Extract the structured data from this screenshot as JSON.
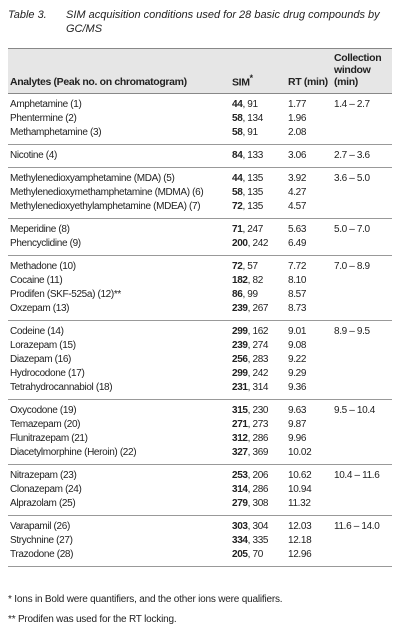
{
  "caption": {
    "label": "Table 3.",
    "text": "SIM acquisition conditions used for 28 basic drug compounds by GC/MS"
  },
  "header": {
    "analytes": "Analytes (Peak no. on chromatogram)",
    "sim": "SIM",
    "sim_note": "*",
    "rt": "RT (min)",
    "window": "Collection window (min)"
  },
  "groups": [
    {
      "window": "1.4 – 2.7",
      "rows": [
        {
          "name": "Amphetamine (1)",
          "quant": "44",
          "qual": ", 91",
          "rt": "1.77"
        },
        {
          "name": "Phentermine (2)",
          "quant": "58",
          "qual": ", 134",
          "rt": "1.96"
        },
        {
          "name": "Methamphetamine (3)",
          "quant": "58",
          "qual": ", 91",
          "rt": "2.08"
        }
      ]
    },
    {
      "window": "2.7 – 3.6",
      "rows": [
        {
          "name": "Nicotine (4)",
          "quant": "84",
          "qual": ", 133",
          "rt": "3.06"
        }
      ]
    },
    {
      "window": "3.6 – 5.0",
      "rows": [
        {
          "name": "Methylenedioxyamphetamine (MDA) (5)",
          "quant": "44",
          "qual": ", 135",
          "rt": "3.92"
        },
        {
          "name": "Methylenedioxymethamphetamine (MDMA) (6)",
          "quant": "58",
          "qual": ", 135",
          "rt": "4.27"
        },
        {
          "name": "Methylenedioxyethylamphetamine (MDEA) (7)",
          "quant": "72",
          "qual": ", 135",
          "rt": "4.57"
        }
      ]
    },
    {
      "window": "5.0 – 7.0",
      "rows": [
        {
          "name": "Meperidine (8)",
          "quant": "71",
          "qual": ", 247",
          "rt": "5.63"
        },
        {
          "name": "Phencyclidine (9)",
          "quant": "200",
          "qual": ", 242",
          "rt": "6.49"
        }
      ]
    },
    {
      "window": "7.0 – 8.9",
      "rows": [
        {
          "name": "Methadone (10)",
          "quant": "72",
          "qual": ", 57",
          "rt": "7.72"
        },
        {
          "name": "Cocaine (11)",
          "quant": "182",
          "qual": ", 82",
          "rt": "8.10"
        },
        {
          "name": "Prodifen (SKF-525a) (12)**",
          "quant": "86",
          "qual": ", 99",
          "rt": "8.57"
        },
        {
          "name": "Oxzepam (13)",
          "quant": "239",
          "qual": ", 267",
          "rt": "8.73"
        }
      ]
    },
    {
      "window": "8.9 – 9.5",
      "rows": [
        {
          "name": "Codeine (14)",
          "quant": "299",
          "qual": ", 162",
          "rt": "9.01"
        },
        {
          "name": "Lorazepam (15)",
          "quant": "239",
          "qual": ", 274",
          "rt": "9.08"
        },
        {
          "name": "Diazepam (16)",
          "quant": "256",
          "qual": ", 283",
          "rt": "9.22"
        },
        {
          "name": "Hydrocodone (17)",
          "quant": "299",
          "qual": ", 242",
          "rt": "9.29"
        },
        {
          "name": "Tetrahydrocannabiol (18)",
          "quant": "231",
          "qual": ", 314",
          "rt": "9.36"
        }
      ]
    },
    {
      "window": "9.5 – 10.4",
      "rows": [
        {
          "name": "Oxycodone (19)",
          "quant": "315",
          "qual": ", 230",
          "rt": "9.63"
        },
        {
          "name": "Temazepam (20)",
          "quant": "271",
          "qual": ", 273",
          "rt": "9.87"
        },
        {
          "name": "Flunitrazepam (21)",
          "quant": "312",
          "qual": ", 286",
          "rt": "9.96"
        },
        {
          "name": "Diacetylmorphine (Heroin) (22)",
          "quant": "327",
          "qual": ", 369",
          "rt": "10.02"
        }
      ]
    },
    {
      "window": "10.4 – 11.6",
      "rows": [
        {
          "name": "Nitrazepam (23)",
          "quant": "253",
          "qual": ", 206",
          "rt": "10.62"
        },
        {
          "name": "Clonazepam (24)",
          "quant": "314",
          "qual": ", 286",
          "rt": "10.94"
        },
        {
          "name": "Alprazolam (25)",
          "quant": "279",
          "qual": ", 308",
          "rt": "11.32"
        }
      ]
    },
    {
      "window": "11.6 – 14.0",
      "rows": [
        {
          "name": "Varapamil (26)",
          "quant": "303",
          "qual": ", 304",
          "rt": "12.03"
        },
        {
          "name": "Strychnine (27)",
          "quant": "334",
          "qual": ", 335",
          "rt": "12.18"
        },
        {
          "name": "Trazodone (28)",
          "quant": "205",
          "qual": ", 70",
          "rt": "12.96"
        }
      ]
    }
  ],
  "footnotes": [
    "* Ions in Bold were quantifiers, and the other ions were qualifiers.",
    "** Prodifen was used for the RT locking."
  ]
}
